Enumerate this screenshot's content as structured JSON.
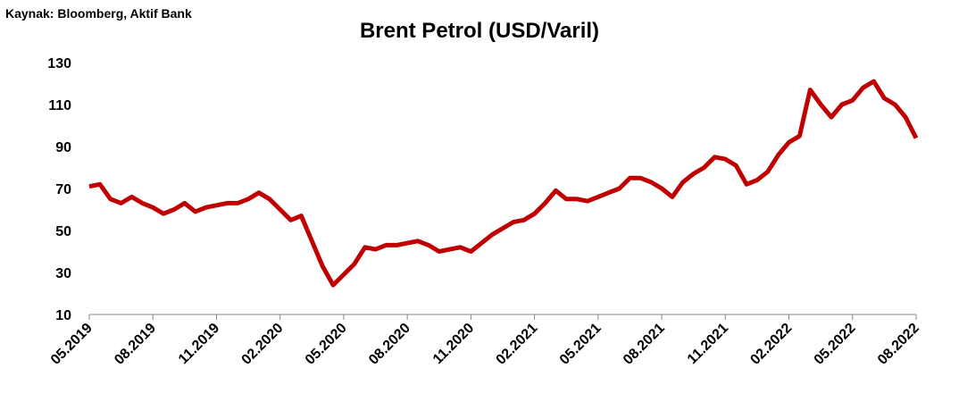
{
  "chart_data": {
    "type": "line",
    "source": "Kaynak: Bloomberg, Aktif Bank",
    "title": "Brent Petrol (USD/Varil)",
    "categories": [
      "05.2019",
      null,
      null,
      null,
      null,
      null,
      "08.2019",
      null,
      null,
      null,
      null,
      null,
      "11.2019",
      null,
      null,
      null,
      null,
      null,
      "02.2020",
      null,
      null,
      null,
      null,
      null,
      "05.2020",
      null,
      null,
      null,
      null,
      null,
      "08.2020",
      null,
      null,
      null,
      null,
      null,
      "11.2020",
      null,
      null,
      null,
      null,
      null,
      "02.2021",
      null,
      null,
      null,
      null,
      null,
      "05.2021",
      null,
      null,
      null,
      null,
      null,
      "08.2021",
      null,
      null,
      null,
      null,
      null,
      "11.2021",
      null,
      null,
      null,
      null,
      null,
      "02.2022",
      null,
      null,
      null,
      null,
      null,
      "05.2022",
      null,
      null,
      null,
      null,
      null,
      "08.2022"
    ],
    "series": [
      {
        "name": "Brent",
        "color": "#c00000",
        "values": [
          71,
          72,
          65,
          63,
          66,
          63,
          61,
          58,
          60,
          63,
          59,
          61,
          62,
          63,
          63,
          65,
          68,
          65,
          60,
          55,
          57,
          45,
          33,
          24,
          29,
          34,
          42,
          41,
          43,
          43,
          44,
          45,
          43,
          40,
          41,
          42,
          40,
          44,
          48,
          51,
          54,
          55,
          58,
          63,
          69,
          65,
          65,
          64,
          66,
          68,
          70,
          75,
          75,
          73,
          70,
          66,
          73,
          77,
          80,
          85,
          84,
          81,
          72,
          74,
          78,
          86,
          92,
          95,
          117,
          110,
          104,
          110,
          112,
          118,
          121,
          113,
          110,
          104,
          94
        ]
      }
    ],
    "ylim": [
      10,
      130
    ],
    "yticks": [
      10,
      30,
      50,
      70,
      90,
      110,
      130
    ],
    "grid": false
  }
}
